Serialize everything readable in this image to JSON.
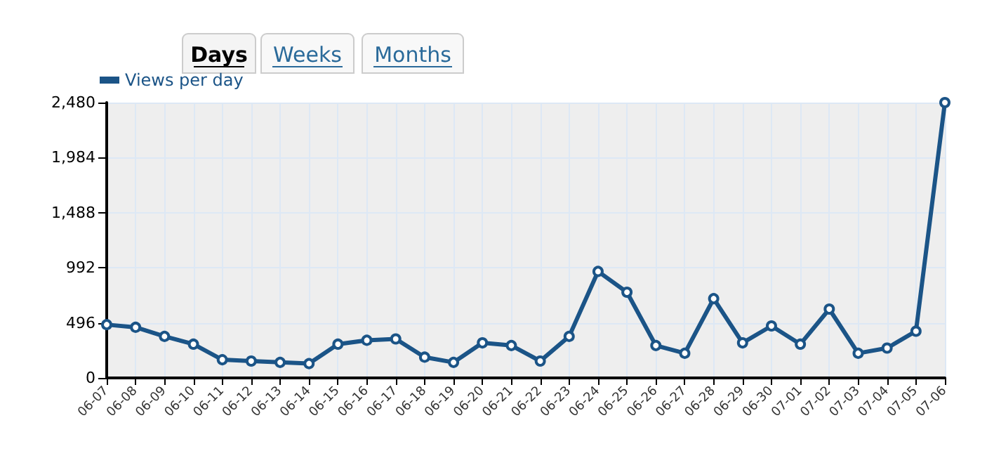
{
  "chart_data": {
    "type": "line",
    "categories": [
      "06-07",
      "06-08",
      "06-09",
      "06-10",
      "06-11",
      "06-12",
      "06-13",
      "06-14",
      "06-15",
      "06-16",
      "06-17",
      "06-18",
      "06-19",
      "06-20",
      "06-21",
      "06-22",
      "06-23",
      "06-24",
      "06-25",
      "06-26",
      "06-27",
      "06-28",
      "06-29",
      "06-30",
      "07-01",
      "07-02",
      "07-03",
      "07-04",
      "07-05",
      "07-06"
    ],
    "series": [
      {
        "name": "Views per day",
        "color": "#1b5487",
        "values": [
          480,
          456,
          374,
          304,
          164,
          152,
          140,
          129,
          304,
          339,
          351,
          187,
          140,
          316,
          292,
          152,
          374,
          959,
          772,
          292,
          222,
          714,
          316,
          468,
          304,
          620,
          222,
          269,
          421,
          2480
        ]
      }
    ],
    "ylim": [
      0,
      2480
    ],
    "yticks": [
      {
        "value": 0,
        "label": "0"
      },
      {
        "value": 496,
        "label": "496"
      },
      {
        "value": 992,
        "label": "992"
      },
      {
        "value": 1488,
        "label": "1,488"
      },
      {
        "value": 1984,
        "label": "1,984"
      },
      {
        "value": 2480,
        "label": "2,480"
      }
    ],
    "annotations": [
      "Days",
      "Weeks",
      "Months"
    ],
    "grid": true,
    "legend": "top left",
    "marker": "circle",
    "line_style": "solid"
  }
}
